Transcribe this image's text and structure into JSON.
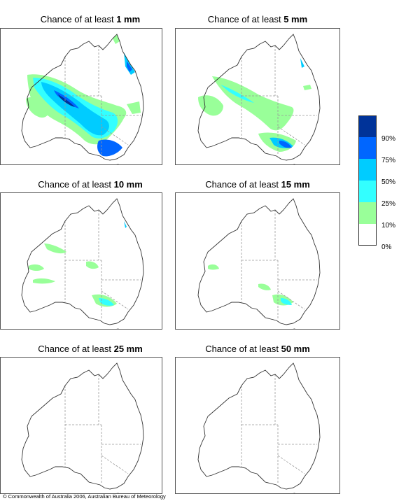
{
  "panels": [
    {
      "prefix": "Chance of at least",
      "amount": "1 mm"
    },
    {
      "prefix": "Chance of at least",
      "amount": "5 mm"
    },
    {
      "prefix": "Chance of at least",
      "amount": "10 mm"
    },
    {
      "prefix": "Chance of at least",
      "amount": "15 mm"
    },
    {
      "prefix": "Chance of at least",
      "amount": "25 mm"
    },
    {
      "prefix": "Chance of at least",
      "amount": "50 mm"
    }
  ],
  "legend": {
    "ticks": [
      "90%",
      "75%",
      "50%",
      "25%",
      "10%",
      "0%"
    ],
    "colors": [
      "#003399",
      "#0066ff",
      "#00ccff",
      "#33ffff",
      "#99ff99",
      "#ffffff"
    ]
  },
  "footer": "© Commonwealth of Australia 2006, Australian Bureau of Meteorology"
}
